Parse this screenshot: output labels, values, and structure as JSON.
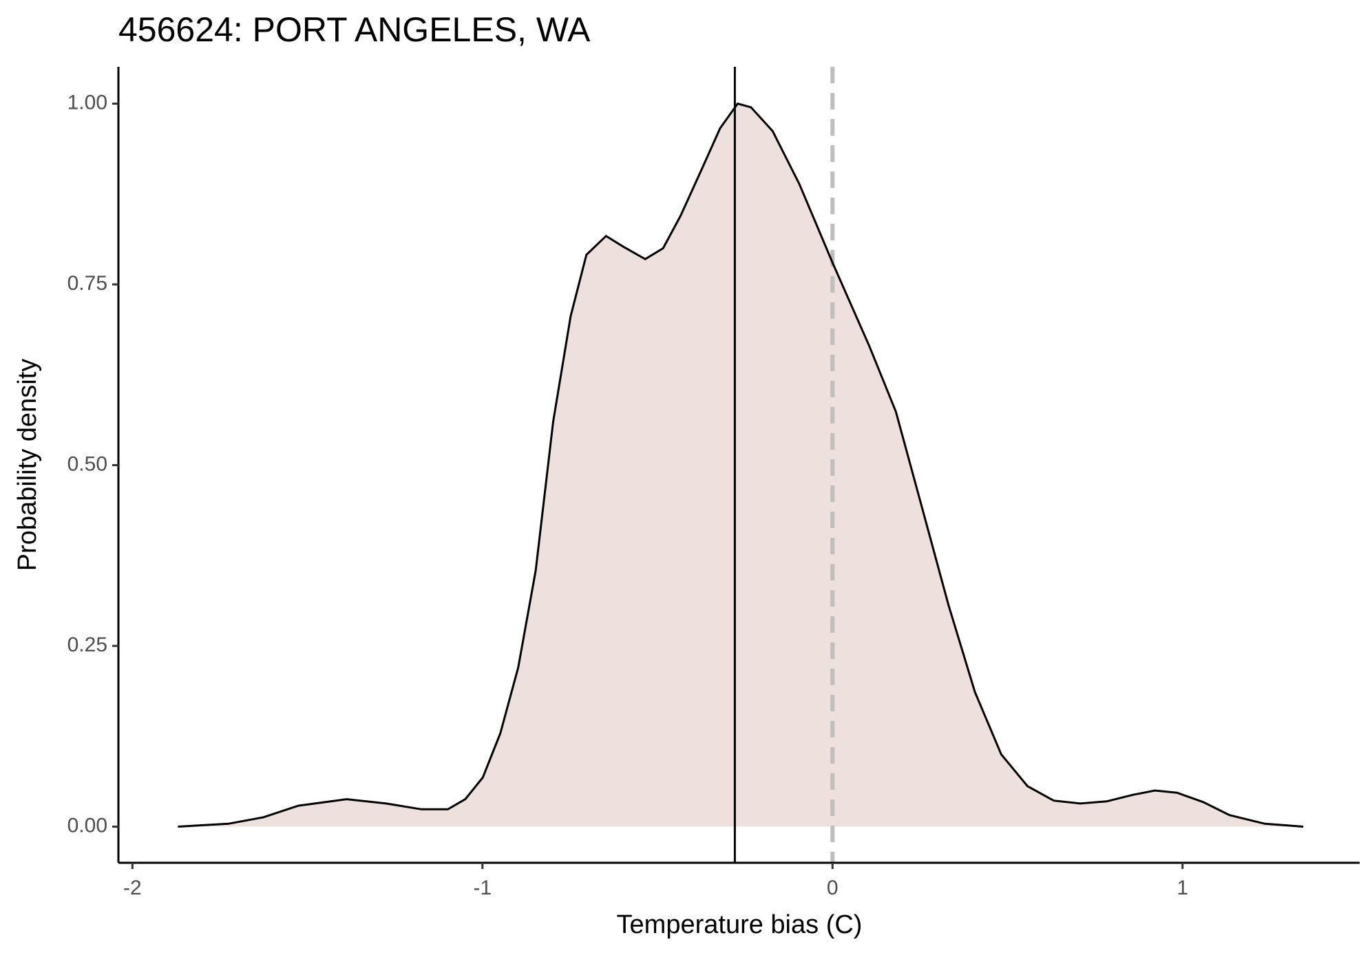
{
  "chart_data": {
    "type": "density",
    "title": "456624: PORT ANGELES, WA",
    "x_label": "Temperature bias (C)",
    "y_label": "Probability density",
    "x": [
      -1.87,
      -1.726,
      -1.626,
      -1.526,
      -1.388,
      -1.275,
      -1.174,
      -1.099,
      -1.049,
      -0.999,
      -0.949,
      -0.898,
      -0.848,
      -0.798,
      -0.748,
      -0.703,
      -0.647,
      -0.597,
      -0.535,
      -0.484,
      -0.434,
      -0.371,
      -0.321,
      -0.271,
      -0.233,
      -0.171,
      -0.095,
      0.0,
      0.105,
      0.181,
      0.256,
      0.331,
      0.407,
      0.482,
      0.557,
      0.632,
      0.708,
      0.783,
      0.858,
      0.921,
      0.984,
      1.059,
      1.134,
      1.235,
      1.345
    ],
    "values": [
      0.0,
      0.004,
      0.013,
      0.029,
      0.038,
      0.032,
      0.024,
      0.024,
      0.038,
      0.068,
      0.129,
      0.22,
      0.354,
      0.56,
      0.706,
      0.791,
      0.817,
      0.802,
      0.785,
      0.8,
      0.845,
      0.912,
      0.966,
      1.0,
      0.995,
      0.962,
      0.889,
      0.78,
      0.665,
      0.574,
      0.441,
      0.307,
      0.186,
      0.1,
      0.056,
      0.036,
      0.032,
      0.035,
      0.044,
      0.05,
      0.047,
      0.034,
      0.016,
      0.004,
      0.0
    ],
    "color": "#000000",
    "fill": "#ede0dd",
    "vlines": [
      {
        "x": -0.279,
        "color": "#000000",
        "style": "solid"
      },
      {
        "x": 0,
        "color": "#bebebe",
        "style": "dashed"
      }
    ],
    "xlim": [
      -2.04,
      1.506
    ],
    "ylim": [
      -0.05,
      1.051
    ],
    "xticks": [
      -2,
      -1,
      0,
      1
    ],
    "yticks": [
      {
        "value": 0,
        "label": "0.00"
      },
      {
        "value": 0.25,
        "label": "0.25"
      },
      {
        "value": 0.5,
        "label": "0.50"
      },
      {
        "value": 0.75,
        "label": "0.75"
      },
      {
        "value": 1,
        "label": "1.00"
      }
    ]
  }
}
